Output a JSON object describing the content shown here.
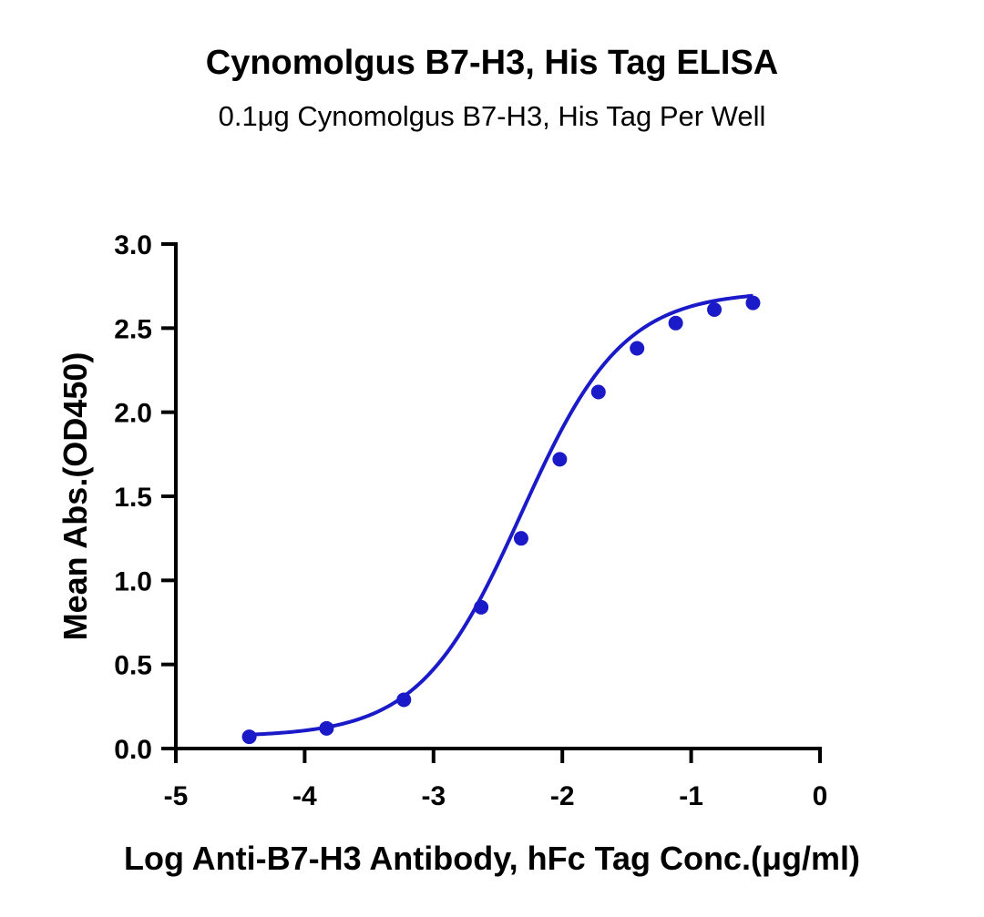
{
  "chart_data": {
    "type": "line",
    "title": "Cynomolgus B7-H3, His Tag ELISA",
    "subtitle": "0.1μg Cynomolgus B7-H3, His Tag Per Well",
    "xlabel": "Log Anti-B7-H3 Antibody, hFc Tag Conc.(μg/ml)",
    "ylabel": "Mean Abs.(OD450)",
    "xlim": [
      -5,
      0
    ],
    "ylim": [
      0,
      3.0
    ],
    "x_ticks": [
      "-5",
      "-4",
      "-3",
      "-2",
      "-1",
      "0"
    ],
    "y_ticks": [
      "0.0",
      "0.5",
      "1.0",
      "1.5",
      "2.0",
      "2.5",
      "3.0"
    ],
    "grid": false,
    "legend": "none",
    "colors": {
      "series": "#1a1ac8"
    },
    "series": [
      {
        "x": [
          -4.43,
          -3.83,
          -3.23,
          -2.63,
          -2.32,
          -2.02,
          -1.72,
          -1.42,
          -1.12,
          -0.82,
          -0.52
        ],
        "y": [
          0.07,
          0.12,
          0.29,
          0.84,
          1.25,
          1.72,
          2.12,
          2.38,
          2.53,
          2.61,
          2.65
        ],
        "fit": {
          "bottom": 0.07,
          "top": 2.72,
          "logEC50": -2.32,
          "hill": 1.1
        }
      }
    ]
  }
}
